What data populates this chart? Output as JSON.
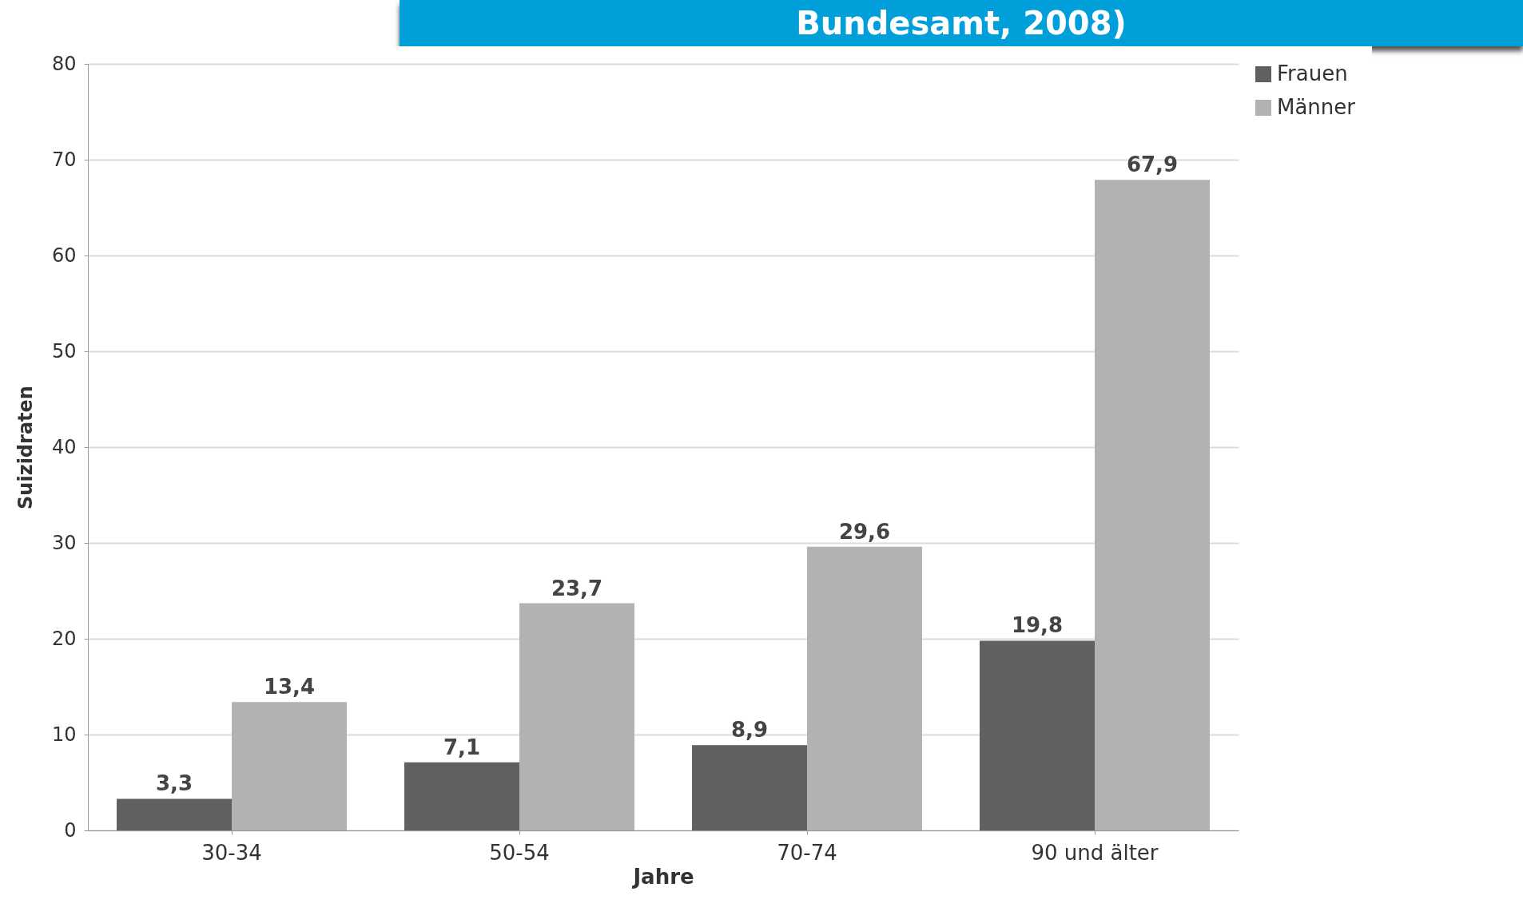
{
  "chart_data": {
    "type": "bar",
    "title": "Bundesamt, 2008)",
    "xlabel": "Jahre",
    "ylabel": "Suizidraten",
    "categories": [
      "30-34",
      "50-54",
      "70-74",
      "90 und älter"
    ],
    "series": [
      {
        "name": "Frauen",
        "color": "#606060",
        "values": [
          3.3,
          7.1,
          8.9,
          19.8
        ],
        "value_labels": [
          "3,3",
          "7,1",
          "8,9",
          "19,8"
        ]
      },
      {
        "name": "Männer",
        "color": "#b2b2b2",
        "values": [
          13.4,
          23.7,
          29.6,
          67.9
        ],
        "value_labels": [
          "13,4",
          "23,7",
          "29,6",
          "67,9"
        ]
      }
    ],
    "ylim": [
      0,
      80
    ],
    "yticks": [
      0,
      10,
      20,
      30,
      40,
      50,
      60,
      70,
      80
    ],
    "grid": "y",
    "legend": "right"
  }
}
